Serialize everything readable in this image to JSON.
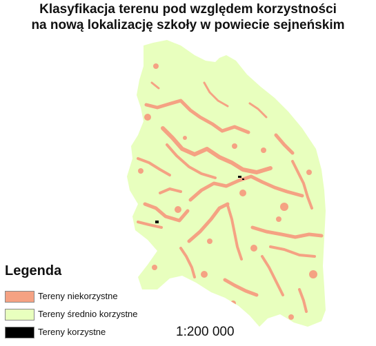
{
  "map": {
    "title_line1": "Klasyfikacja terenu pod względem korzystności",
    "title_line2": "na nową lokalizację szkoły w powiecie sejneńskim",
    "scale": "1:200 000",
    "colors": {
      "unfavorable": "#f5a283",
      "medium": "#e8ffbe",
      "favorable": "#000000"
    }
  },
  "legend": {
    "title": "Legenda",
    "items": [
      {
        "label": "Tereny niekorzystne",
        "color": "#f5a283"
      },
      {
        "label": "Tereny średnio korzystne",
        "color": "#e8ffbe"
      },
      {
        "label": "Tereny korzystne",
        "color": "#000000"
      }
    ]
  }
}
